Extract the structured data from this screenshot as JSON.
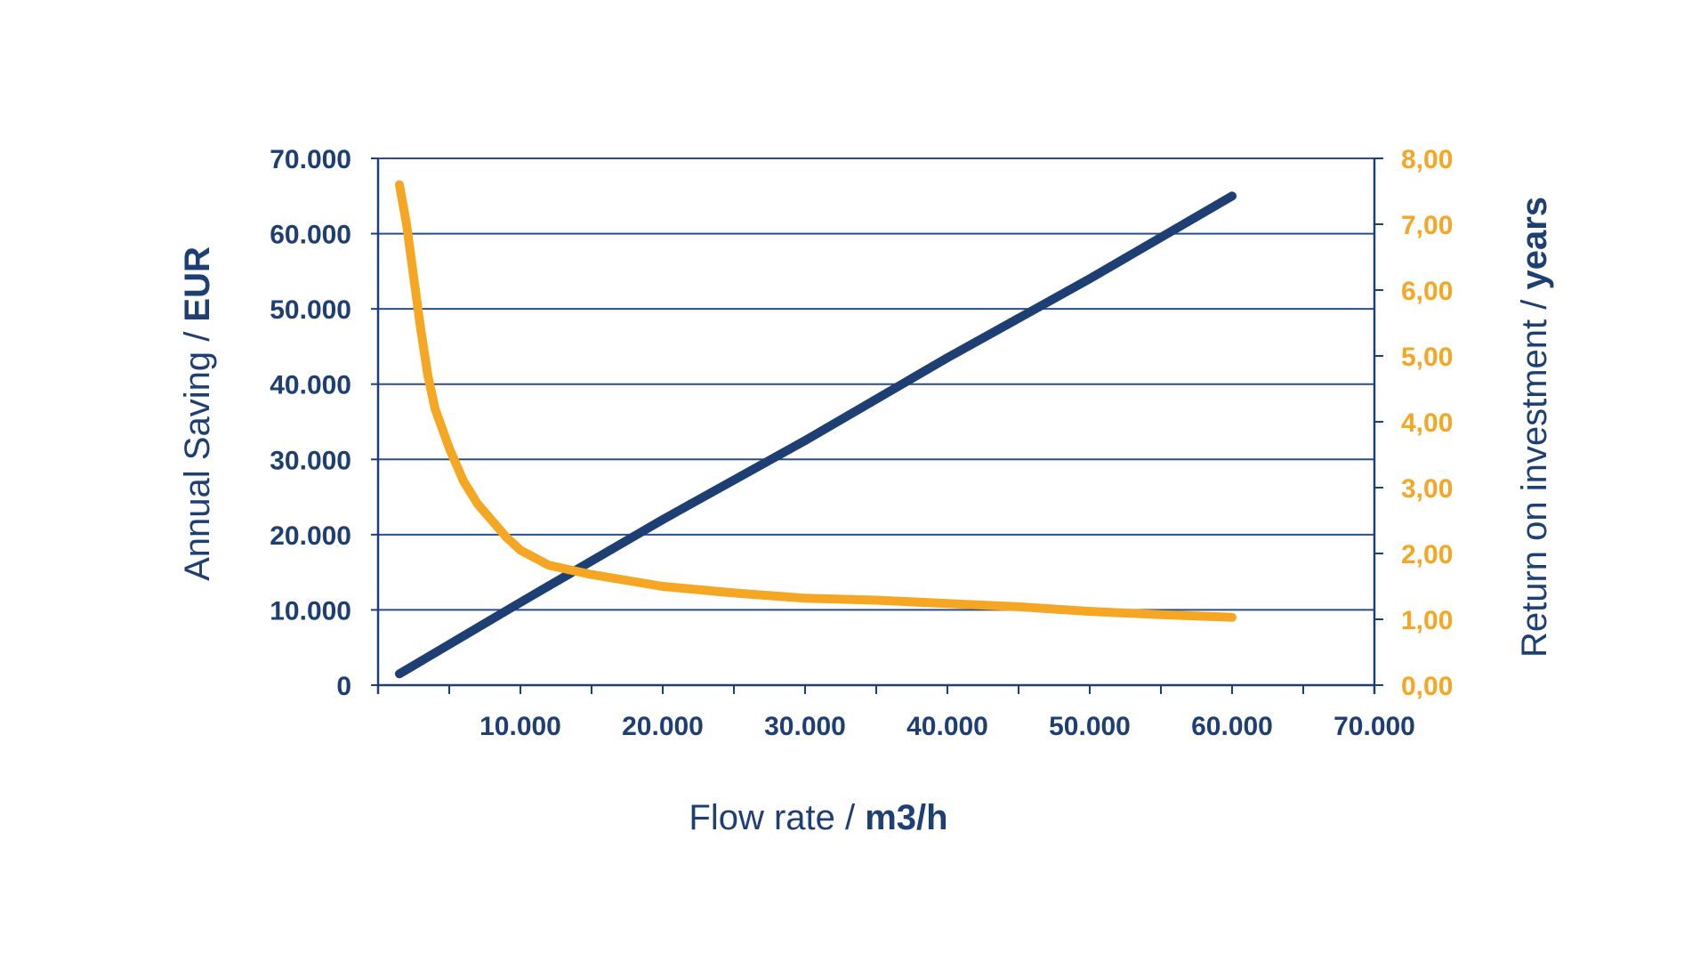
{
  "chart_data": {
    "type": "line",
    "title": "",
    "xlabel": "Flow rate /",
    "xlabel_unit": "m3/h",
    "ylabel": "Annual Saving /",
    "ylabel_unit": "EUR",
    "y2label": "Return on investment /",
    "y2label_unit": "years",
    "xlim": [
      0,
      70000
    ],
    "ylim": [
      0,
      70000
    ],
    "y2lim": [
      0,
      8
    ],
    "x_ticks": [
      "10.000",
      "20.000",
      "30.000",
      "40.000",
      "50.000",
      "60.000",
      "70.000"
    ],
    "x_tick_values": [
      10000,
      20000,
      30000,
      40000,
      50000,
      60000,
      70000
    ],
    "y_ticks": [
      "0",
      "10.000",
      "20.000",
      "30.000",
      "40.000",
      "50.000",
      "60.000",
      "70.000"
    ],
    "y_tick_values": [
      0,
      10000,
      20000,
      30000,
      40000,
      50000,
      60000,
      70000
    ],
    "y2_ticks": [
      "0,00",
      "1,00",
      "2,00",
      "3,00",
      "4,00",
      "5,00",
      "6,00",
      "7,00",
      "8,00"
    ],
    "y2_tick_values": [
      0,
      1,
      2,
      3,
      4,
      5,
      6,
      7,
      8
    ],
    "grid": true,
    "series": [
      {
        "axis": "left",
        "color": "#1d3f73",
        "x": [
          1500,
          10000,
          20000,
          30000,
          40000,
          50000,
          60000
        ],
        "y": [
          1500,
          11000,
          22000,
          32500,
          43500,
          54000,
          65000
        ]
      },
      {
        "axis": "right",
        "color": "#f5a623",
        "x": [
          1500,
          2000,
          2500,
          3000,
          3500,
          4000,
          5000,
          6000,
          7000,
          8000,
          9000,
          10000,
          12000,
          15000,
          20000,
          25000,
          30000,
          35000,
          40000,
          45000,
          50000,
          55000,
          60000
        ],
        "y": [
          7.6,
          7.0,
          6.2,
          5.4,
          4.7,
          4.2,
          3.6,
          3.1,
          2.75,
          2.5,
          2.25,
          2.05,
          1.82,
          1.68,
          1.5,
          1.4,
          1.32,
          1.29,
          1.24,
          1.19,
          1.12,
          1.07,
          1.03
        ]
      }
    ]
  }
}
